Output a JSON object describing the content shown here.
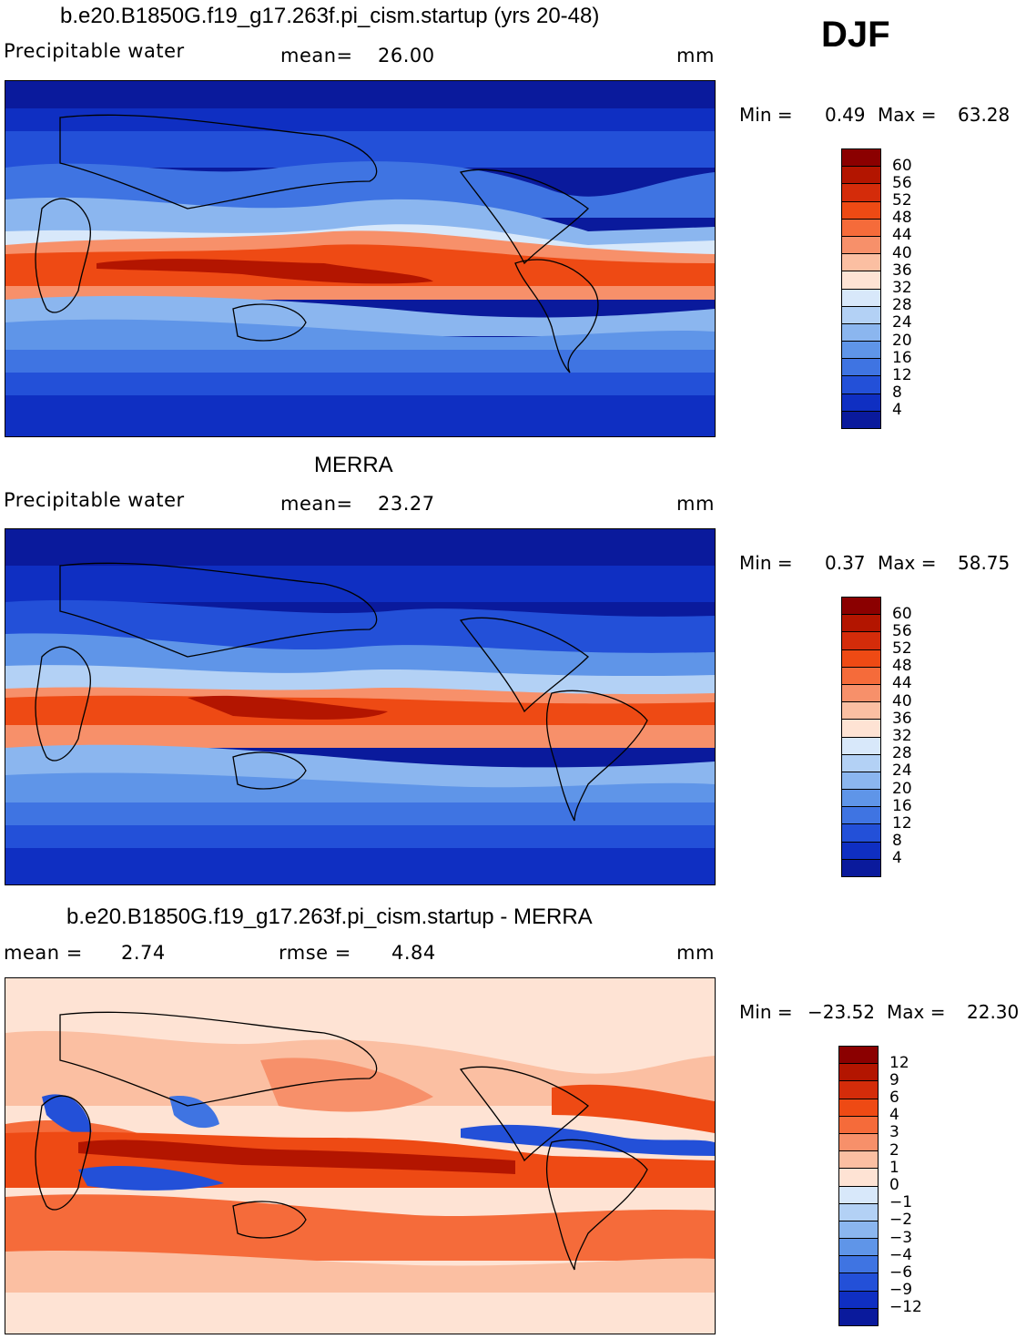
{
  "season": "DJF",
  "panels": [
    {
      "id": "model",
      "title": "b.e20.B1850G.f19_g17.263f.pi_cism.startup (yrs 20-48)",
      "left_label": "Precipitable water",
      "stat1_label": "mean=",
      "stat1_value": "26.00",
      "units": "mm",
      "min_label": "Min =",
      "min_value": "0.49",
      "max_label": "Max =",
      "max_value": "63.28",
      "colorbar": {
        "colors": [
          "#8b0000",
          "#b31500",
          "#d42c0a",
          "#ee4a14",
          "#f56b3a",
          "#f7906a",
          "#fbbfa2",
          "#fee3d4",
          "#d8e8fa",
          "#b3d1f5",
          "#8bb6ef",
          "#5f95e8",
          "#3f74e2",
          "#2350d8",
          "#0f2fc2",
          "#0a1a9c"
        ],
        "labels": [
          "60",
          "56",
          "52",
          "48",
          "44",
          "40",
          "36",
          "32",
          "28",
          "24",
          "20",
          "16",
          "12",
          "8",
          "4"
        ]
      }
    },
    {
      "id": "obs",
      "title": "MERRA",
      "left_label": "Precipitable water",
      "stat1_label": "mean=",
      "stat1_value": "23.27",
      "units": "mm",
      "min_label": "Min =",
      "min_value": "0.37",
      "max_label": "Max =",
      "max_value": "58.75",
      "colorbar": {
        "colors": [
          "#8b0000",
          "#b31500",
          "#d42c0a",
          "#ee4a14",
          "#f56b3a",
          "#f7906a",
          "#fbbfa2",
          "#fee3d4",
          "#d8e8fa",
          "#b3d1f5",
          "#8bb6ef",
          "#5f95e8",
          "#3f74e2",
          "#2350d8",
          "#0f2fc2",
          "#0a1a9c"
        ],
        "labels": [
          "60",
          "56",
          "52",
          "48",
          "44",
          "40",
          "36",
          "32",
          "28",
          "24",
          "20",
          "16",
          "12",
          "8",
          "4"
        ]
      }
    },
    {
      "id": "diff",
      "title": "b.e20.B1850G.f19_g17.263f.pi_cism.startup - MERRA",
      "left_label": "mean =",
      "left_value": "2.74",
      "stat1_label": "rmse =",
      "stat1_value": "4.84",
      "units": "mm",
      "min_label": "Min =",
      "min_value": "−23.52",
      "max_label": "Max =",
      "max_value": "22.30",
      "colorbar": {
        "colors": [
          "#8b0000",
          "#b31500",
          "#d42c0a",
          "#ee4a14",
          "#f56b3a",
          "#f7906a",
          "#fbbfa2",
          "#fee3d4",
          "#d8e8fa",
          "#b3d1f5",
          "#8bb6ef",
          "#5f95e8",
          "#3f74e2",
          "#2350d8",
          "#0f2fc2",
          "#0a1a9c"
        ],
        "labels": [
          "12",
          "9",
          "6",
          "4",
          "3",
          "2",
          "1",
          "0",
          "−1",
          "−2",
          "−3",
          "−4",
          "−6",
          "−9",
          "−12"
        ]
      }
    }
  ],
  "chart_data": [
    {
      "type": "heatmap",
      "title": "b.e20.B1850G.f19_g17.263f.pi_cism.startup (yrs 20-48)",
      "variable": "Precipitable water",
      "units": "mm",
      "mean": 26.0,
      "min": 0.49,
      "max": 63.28,
      "contour_levels": [
        4,
        8,
        12,
        16,
        20,
        24,
        28,
        32,
        36,
        40,
        44,
        48,
        52,
        56,
        60
      ]
    },
    {
      "type": "heatmap",
      "title": "MERRA",
      "variable": "Precipitable water",
      "units": "mm",
      "mean": 23.27,
      "min": 0.37,
      "max": 58.75,
      "contour_levels": [
        4,
        8,
        12,
        16,
        20,
        24,
        28,
        32,
        36,
        40,
        44,
        48,
        52,
        56,
        60
      ]
    },
    {
      "type": "heatmap",
      "title": "b.e20.B1850G.f19_g17.263f.pi_cism.startup - MERRA",
      "units": "mm",
      "mean": 2.74,
      "rmse": 4.84,
      "min": -23.52,
      "max": 22.3,
      "contour_levels": [
        -12,
        -9,
        -6,
        -4,
        -3,
        -2,
        -1,
        0,
        1,
        2,
        3,
        4,
        6,
        9,
        12
      ]
    }
  ]
}
